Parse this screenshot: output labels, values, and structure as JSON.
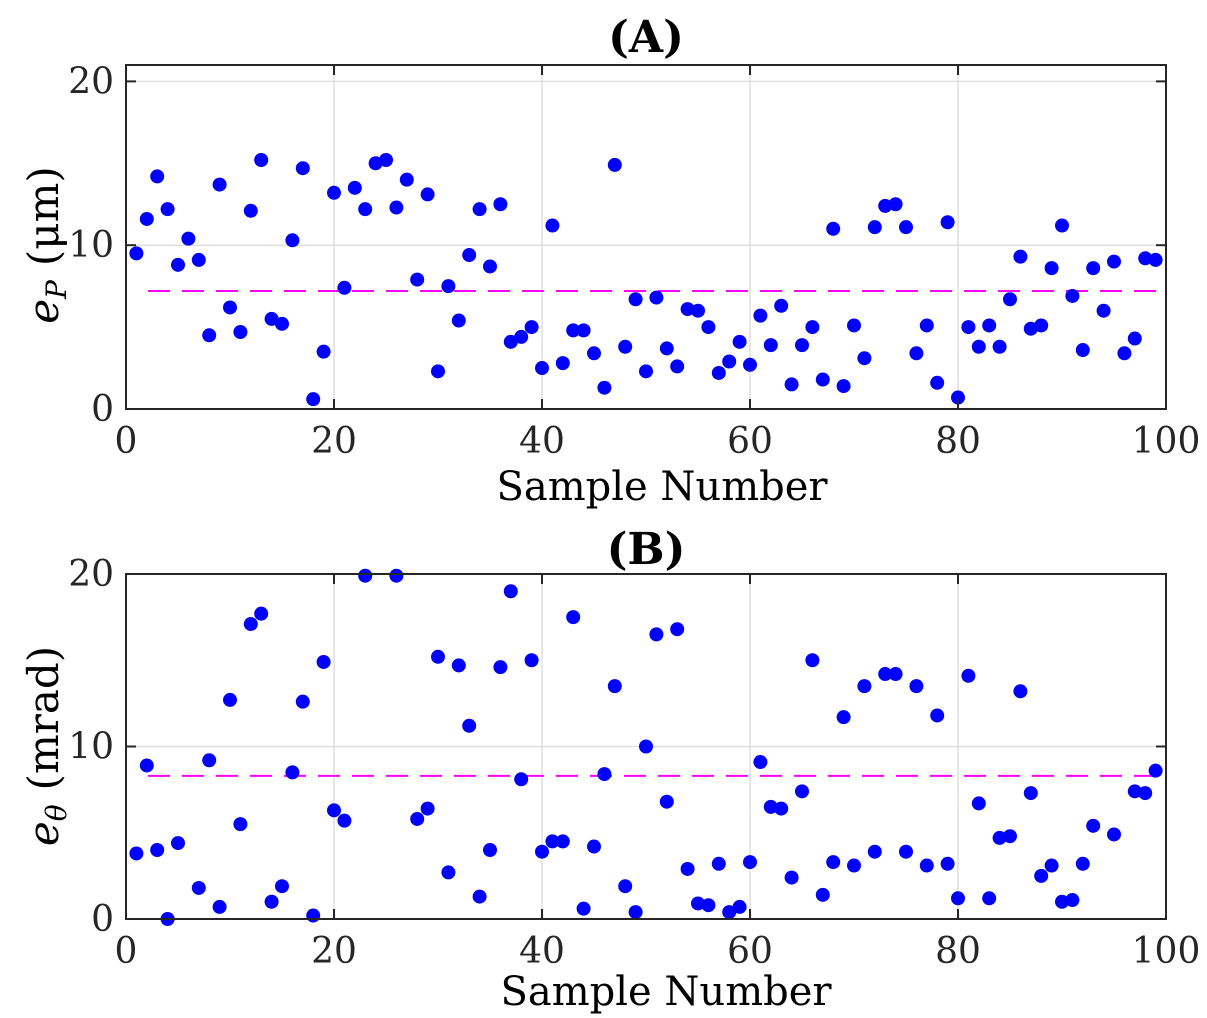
{
  "chart_data": [
    {
      "type": "scatter",
      "title": "(A)",
      "xlabel": "Sample Number",
      "ylabel_main": "e",
      "ylabel_sub": "P",
      "ylabel_unit": "(μm)",
      "xlim": [
        0,
        100
      ],
      "ylim": [
        0,
        21
      ],
      "xticks": [
        0,
        20,
        40,
        60,
        80,
        100
      ],
      "yticks": [
        0,
        10,
        20
      ],
      "grid": true,
      "point_color": "#0000ff",
      "mean_color": "#ff00ff",
      "mean_line": 7.2,
      "x": [
        1,
        2,
        3,
        4,
        5,
        6,
        7,
        8,
        9,
        10,
        11,
        12,
        13,
        14,
        15,
        16,
        17,
        18,
        19,
        20,
        21,
        22,
        23,
        24,
        25,
        26,
        27,
        28,
        29,
        30,
        31,
        32,
        33,
        34,
        35,
        36,
        37,
        38,
        39,
        40,
        41,
        42,
        43,
        44,
        45,
        46,
        47,
        48,
        49,
        50,
        51,
        52,
        53,
        54,
        55,
        56,
        57,
        58,
        59,
        60,
        61,
        62,
        63,
        64,
        65,
        66,
        67,
        68,
        69,
        70,
        71,
        72,
        73,
        74,
        75,
        76,
        77,
        78,
        79,
        80,
        81,
        82,
        83,
        84,
        85,
        86,
        87,
        88,
        89,
        90,
        91,
        92,
        93,
        94,
        95,
        96,
        97,
        98,
        99
      ],
      "y": [
        9.5,
        11.6,
        14.2,
        12.2,
        8.8,
        10.4,
        9.1,
        4.5,
        13.7,
        6.2,
        4.7,
        12.1,
        15.2,
        5.5,
        5.2,
        10.3,
        14.7,
        0.6,
        3.5,
        13.2,
        7.4,
        13.5,
        12.2,
        15.0,
        15.2,
        12.3,
        14.0,
        7.9,
        13.1,
        2.3,
        7.5,
        5.4,
        9.4,
        12.2,
        8.7,
        12.5,
        4.1,
        4.4,
        5.0,
        2.5,
        11.2,
        2.8,
        4.8,
        4.8,
        3.4,
        1.3,
        14.9,
        3.8,
        6.7,
        2.3,
        6.8,
        3.7,
        2.6,
        6.1,
        6.0,
        5.0,
        2.2,
        2.9,
        4.1,
        2.7,
        5.7,
        3.9,
        6.3,
        1.5,
        3.9,
        5.0,
        1.8,
        11.0,
        1.4,
        5.1,
        3.1,
        11.1,
        12.4,
        12.5,
        11.1,
        3.4,
        5.1,
        1.6,
        11.4,
        0.7,
        5.0,
        3.8,
        5.1,
        3.8,
        6.7,
        9.3,
        4.9,
        5.1,
        8.6,
        11.2,
        6.9,
        3.6,
        8.6,
        6.0,
        9.0,
        3.4,
        4.3,
        9.2,
        9.1
      ]
    },
    {
      "type": "scatter",
      "title": "(B)",
      "xlabel": "Sample Number",
      "ylabel_main": "e",
      "ylabel_sub": "θ",
      "ylabel_unit": "(mrad)",
      "xlim": [
        0,
        100
      ],
      "ylim": [
        0,
        20
      ],
      "xticks": [
        0,
        20,
        40,
        60,
        80,
        100
      ],
      "yticks": [
        0,
        10,
        20
      ],
      "grid": true,
      "point_color": "#0000ff",
      "mean_color": "#ff00ff",
      "mean_line": 8.3,
      "x": [
        1,
        2,
        3,
        4,
        5,
        7,
        8,
        9,
        10,
        11,
        12,
        13,
        14,
        15,
        16,
        17,
        18,
        19,
        20,
        21,
        23,
        26,
        28,
        29,
        30,
        31,
        32,
        33,
        34,
        35,
        36,
        37,
        38,
        39,
        40,
        41,
        42,
        43,
        44,
        45,
        46,
        47,
        48,
        49,
        50,
        51,
        52,
        53,
        54,
        55,
        56,
        57,
        58,
        59,
        60,
        61,
        62,
        63,
        64,
        65,
        66,
        67,
        68,
        69,
        70,
        71,
        72,
        73,
        74,
        75,
        76,
        77,
        78,
        79,
        80,
        81,
        82,
        83,
        84,
        85,
        86,
        87,
        88,
        89,
        90,
        91,
        92,
        93,
        95,
        97,
        98,
        99
      ],
      "y": [
        3.8,
        8.9,
        4.0,
        0.0,
        4.4,
        1.8,
        9.2,
        0.7,
        12.7,
        5.5,
        17.1,
        17.7,
        1.0,
        1.9,
        8.5,
        12.6,
        0.2,
        14.9,
        6.3,
        5.7,
        19.9,
        19.9,
        5.8,
        6.4,
        15.2,
        2.7,
        14.7,
        11.2,
        1.3,
        4.0,
        14.6,
        19.0,
        8.1,
        15.0,
        3.9,
        4.5,
        4.5,
        17.5,
        0.6,
        4.2,
        8.4,
        13.5,
        1.9,
        0.4,
        10.0,
        16.5,
        6.8,
        16.8,
        2.9,
        0.9,
        0.8,
        3.2,
        0.4,
        0.7,
        3.3,
        9.1,
        6.5,
        6.4,
        2.4,
        7.4,
        15.0,
        1.4,
        3.3,
        11.7,
        3.1,
        13.5,
        3.9,
        14.2,
        14.2,
        3.9,
        13.5,
        3.1,
        11.8,
        3.2,
        1.2,
        14.1,
        6.7,
        1.2,
        4.7,
        4.8,
        13.2,
        7.3,
        2.5,
        3.1,
        1.0,
        1.1,
        3.2,
        5.4,
        4.9,
        7.4,
        7.3,
        8.6
      ]
    }
  ]
}
